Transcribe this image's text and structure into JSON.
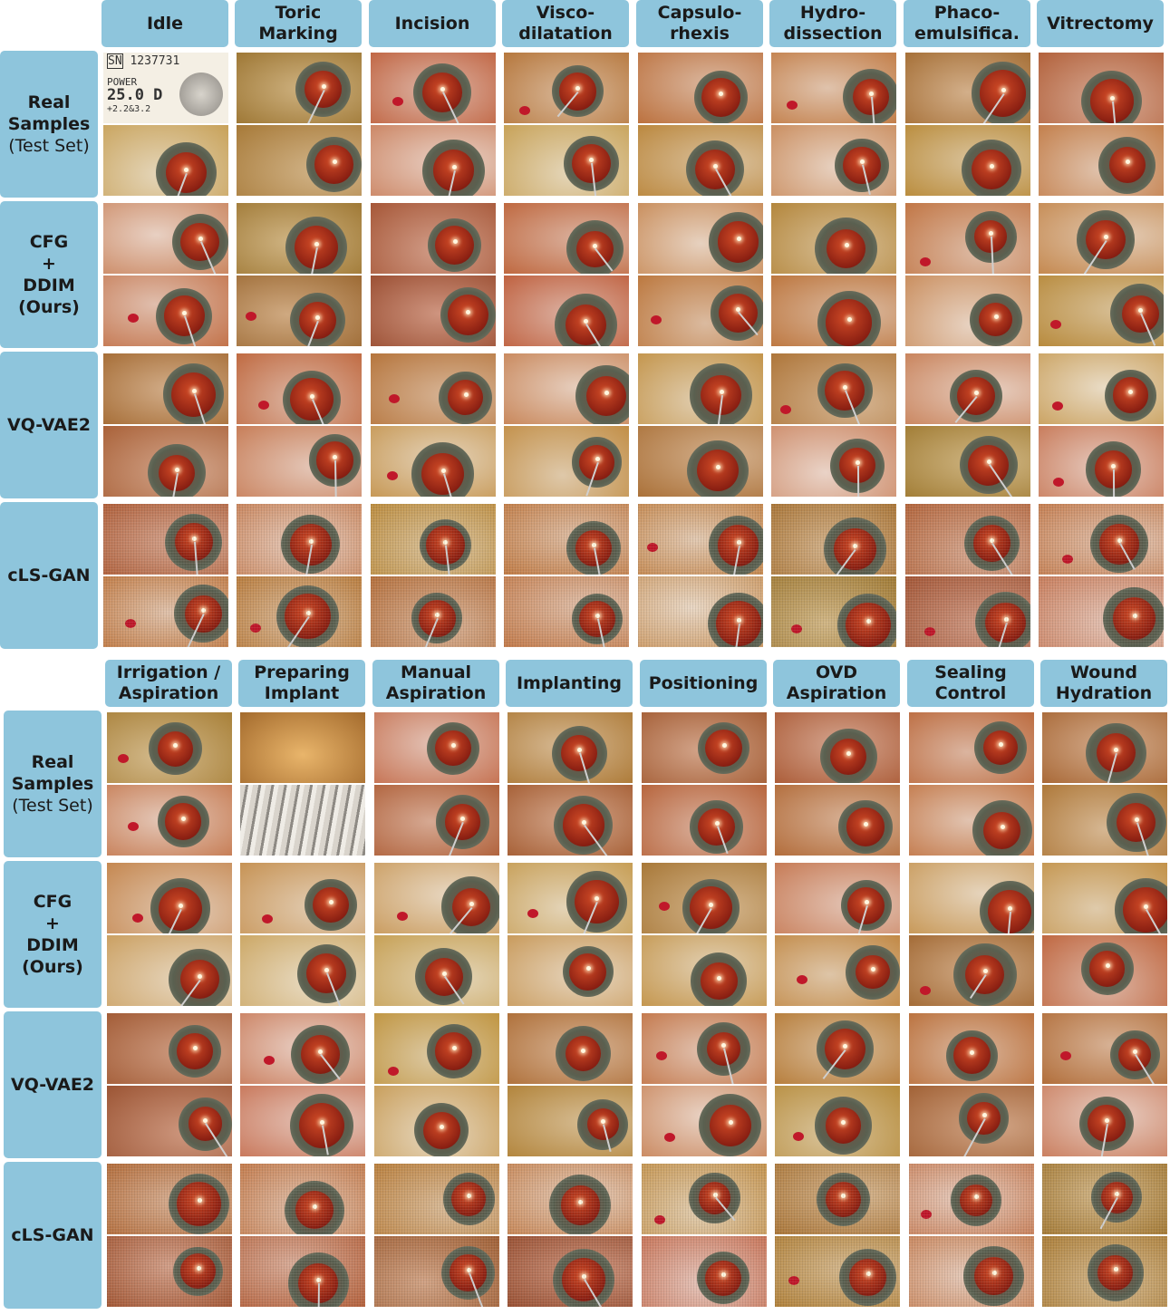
{
  "figure": {
    "top_panel": {
      "columns": [
        "Idle",
        "Toric\nMarking",
        "Incision",
        "Visco-\ndilatation",
        "Capsulo-\nrhexis",
        "Hydro-\ndissection",
        "Phaco-\nemulsifica.",
        "Vitrectomy"
      ],
      "rows": [
        {
          "label": "Real\nSamples",
          "sub": "(Test Set)"
        },
        {
          "label": "CFG\n+\nDDIM\n(Ours)",
          "sub": ""
        },
        {
          "label": "VQ-VAE2",
          "sub": ""
        },
        {
          "label": "cLS-GAN",
          "sub": ""
        }
      ]
    },
    "bottom_panel": {
      "columns": [
        "Irrigation /\nAspiration",
        "Preparing\nImplant",
        "Manual\nAspiration",
        "Implanting",
        "Positioning",
        "OVD\nAspiration",
        "Sealing\nControl",
        "Wound\nHydration"
      ],
      "rows": [
        {
          "label": "Real\nSamples",
          "sub": "(Test Set)"
        },
        {
          "label": "CFG\n+\nDDIM\n(Ours)",
          "sub": ""
        },
        {
          "label": "VQ-VAE2",
          "sub": ""
        },
        {
          "label": "cLS-GAN",
          "sub": ""
        }
      ]
    },
    "image_label_text": {
      "sn": "SN",
      "serial": "1237731",
      "power_label": "POWER",
      "power_value": "25.0 D",
      "cyl": "+2.2&3.2"
    },
    "colors": {
      "header_bg": "#8ec5dc",
      "sclera": "#d9a486",
      "iris": "#6e7a6a",
      "pupil": "#9a2a1a"
    }
  }
}
